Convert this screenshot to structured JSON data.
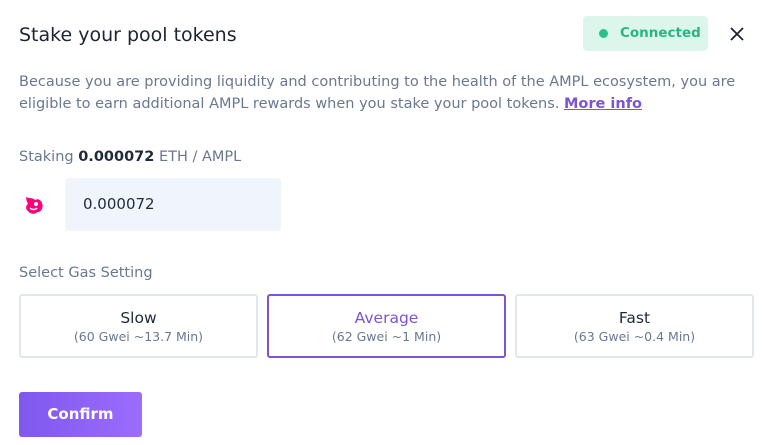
{
  "header": {
    "title": "Stake your pool tokens",
    "status": "Connected"
  },
  "description": {
    "text": "Because you are providing liquidity and contributing to the health of the AMPL ecosystem, you are eligible to earn additional AMPL rewards when you stake your pool tokens.",
    "link": "More info"
  },
  "staking": {
    "label": "Staking",
    "amount": "0.000072",
    "pair": "ETH / AMPL",
    "input_value": "0.000072"
  },
  "gas": {
    "label": "Select Gas Setting",
    "selected": 1,
    "options": [
      {
        "name": "Slow",
        "detail": "(60 Gwei ~13.7 Min)"
      },
      {
        "name": "Average",
        "detail": "(62 Gwei ~1 Min)"
      },
      {
        "name": "Fast",
        "detail": "(63 Gwei ~0.4 Min)"
      }
    ]
  },
  "confirm": "Confirm"
}
